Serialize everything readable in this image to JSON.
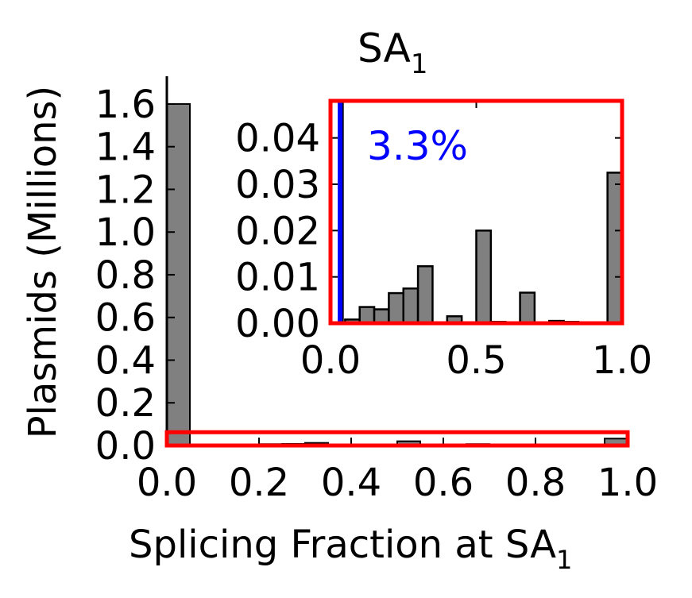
{
  "chart_data": [
    {
      "panel": "main",
      "type": "bar",
      "title": "SA",
      "title_subscript": "1",
      "xlabel": "Splicing Fraction at SA",
      "xlabel_subscript": "1",
      "ylabel": "Plasmids (Millions)",
      "xlim": [
        0.0,
        1.0
      ],
      "ylim": [
        0.0,
        1.73
      ],
      "x_ticks": [
        "0.0",
        "0.2",
        "0.4",
        "0.6",
        "0.8",
        "1.0"
      ],
      "y_ticks": [
        "0.0",
        "0.2",
        "0.4",
        "0.6",
        "0.8",
        "1.0",
        "1.2",
        "1.4",
        "1.6"
      ],
      "bin_width": 0.05,
      "bin_starts": [
        0.0,
        0.05,
        0.1,
        0.15,
        0.2,
        0.25,
        0.3,
        0.35,
        0.4,
        0.45,
        0.5,
        0.55,
        0.6,
        0.65,
        0.7,
        0.75,
        0.8,
        0.85,
        0.9,
        0.95
      ],
      "values": [
        1.6,
        0.0008,
        0.0035,
        0.003,
        0.0065,
        0.0075,
        0.0123,
        0.0,
        0.0015,
        0.0,
        0.02,
        0.0003,
        0.0,
        0.0066,
        0.0,
        0.0005,
        0.0003,
        0.0,
        0.0,
        0.0325
      ],
      "highlight_box": {
        "x_range": [
          0.0,
          1.0
        ],
        "y_range": [
          0.0,
          0.04
        ],
        "color": "#ff0000"
      },
      "bar_color": "#808080",
      "grid": false
    },
    {
      "panel": "inset",
      "type": "bar",
      "xlim": [
        0.0,
        1.0
      ],
      "ylim": [
        0.0,
        0.048
      ],
      "x_ticks": [
        "0.0",
        "0.5",
        "1.0"
      ],
      "y_ticks": [
        "0.00",
        "0.01",
        "0.02",
        "0.03",
        "0.04"
      ],
      "bin_width": 0.05,
      "bin_starts": [
        0.05,
        0.1,
        0.15,
        0.2,
        0.25,
        0.3,
        0.35,
        0.4,
        0.45,
        0.5,
        0.55,
        0.6,
        0.65,
        0.7,
        0.75,
        0.8,
        0.85,
        0.9,
        0.95
      ],
      "values": [
        0.0008,
        0.0035,
        0.003,
        0.0065,
        0.0075,
        0.0123,
        0.0,
        0.0015,
        0.0,
        0.02,
        0.0003,
        0.0,
        0.0066,
        0.0,
        0.0005,
        0.0003,
        0.0,
        0.0,
        0.0325
      ],
      "cutoff_x": 0.033,
      "cutoff_color": "#0000ff",
      "annotation": "3.3%",
      "annotation_color": "#0000ff",
      "frame_color": "#ff0000",
      "bar_color": "#808080",
      "grid": false
    }
  ]
}
